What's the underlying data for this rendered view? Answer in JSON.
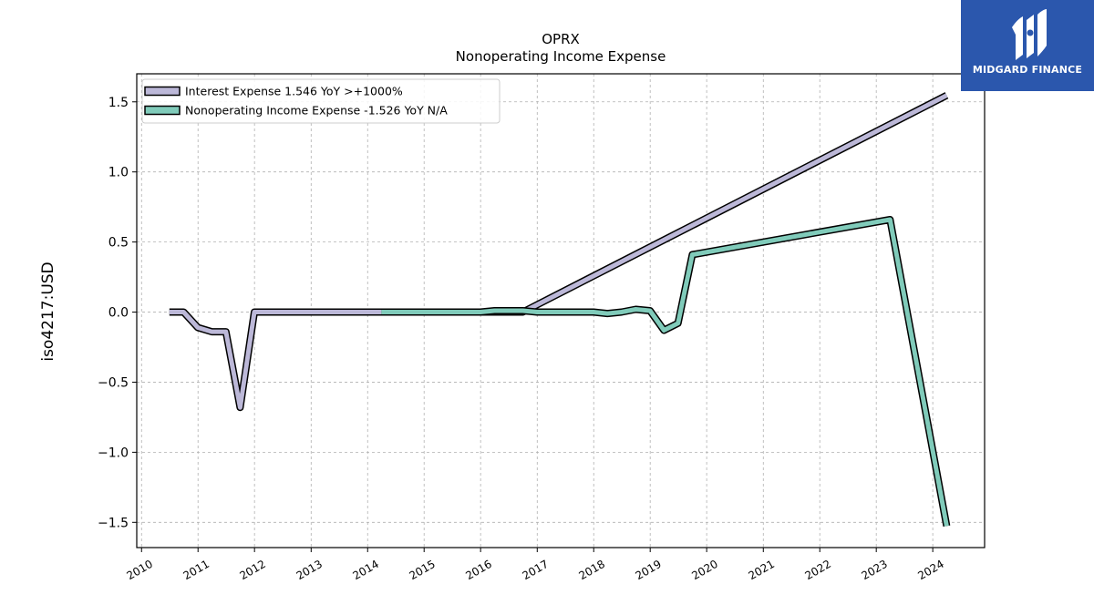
{
  "chart_data": {
    "type": "line",
    "title": "OPRX",
    "subtitle": "Nonoperating Income Expense",
    "ylabel": "iso4217:USD",
    "xlabel": "",
    "xlim": [
      "2009-12-01",
      "2024-12-01"
    ],
    "ylim": [
      -1.68,
      1.7
    ],
    "x_ticks": [
      "2010",
      "2011",
      "2012",
      "2013",
      "2014",
      "2015",
      "2016",
      "2017",
      "2018",
      "2019",
      "2020",
      "2021",
      "2022",
      "2023",
      "2024"
    ],
    "y_ticks": [
      1.5,
      1.0,
      0.5,
      0.0,
      -0.5,
      -1.0,
      -1.5
    ],
    "y_tick_labels": [
      "1.5",
      "1.0",
      "0.5",
      "0.0",
      "−0.5",
      "−1.0",
      "−1.5"
    ],
    "grid": true,
    "legend_position": "top-left",
    "series": [
      {
        "name": "Interest Expense  1.546 YoY >+1000%",
        "color": "#bcb8d8",
        "points": [
          [
            "2010-06-30",
            0.0
          ],
          [
            "2010-09-30",
            0.0
          ],
          [
            "2010-12-31",
            -0.11
          ],
          [
            "2011-03-31",
            -0.14
          ],
          [
            "2011-06-30",
            -0.14
          ],
          [
            "2011-09-30",
            -0.68
          ],
          [
            "2011-12-31",
            0.0
          ],
          [
            "2012-12-31",
            0.0
          ],
          [
            "2013-12-31",
            0.0
          ],
          [
            "2014-03-31",
            0.0
          ],
          [
            "2015-12-31",
            0.0
          ],
          [
            "2016-09-30",
            0.0
          ],
          [
            "2024-03-31",
            1.546
          ]
        ]
      },
      {
        "name": "Nonoperating Income Expense  -1.526 YoY N/A",
        "color": "#80cbba",
        "points": [
          [
            "2014-03-31",
            0.0
          ],
          [
            "2015-12-31",
            0.0
          ],
          [
            "2016-03-31",
            0.01
          ],
          [
            "2016-09-30",
            0.01
          ],
          [
            "2016-12-31",
            0.0
          ],
          [
            "2017-03-31",
            0.0
          ],
          [
            "2017-06-30",
            0.0
          ],
          [
            "2017-09-30",
            0.0
          ],
          [
            "2017-12-31",
            0.0
          ],
          [
            "2018-03-31",
            -0.01
          ],
          [
            "2018-06-30",
            0.0
          ],
          [
            "2018-09-30",
            0.02
          ],
          [
            "2018-12-31",
            0.01
          ],
          [
            "2019-03-31",
            -0.13
          ],
          [
            "2019-06-30",
            -0.08
          ],
          [
            "2019-09-30",
            0.41
          ],
          [
            "2023-03-31",
            0.66
          ],
          [
            "2024-03-31",
            -1.526
          ]
        ]
      }
    ]
  },
  "brand": {
    "name": "MIDGARD FINANCE",
    "color": "#2b57ad"
  }
}
